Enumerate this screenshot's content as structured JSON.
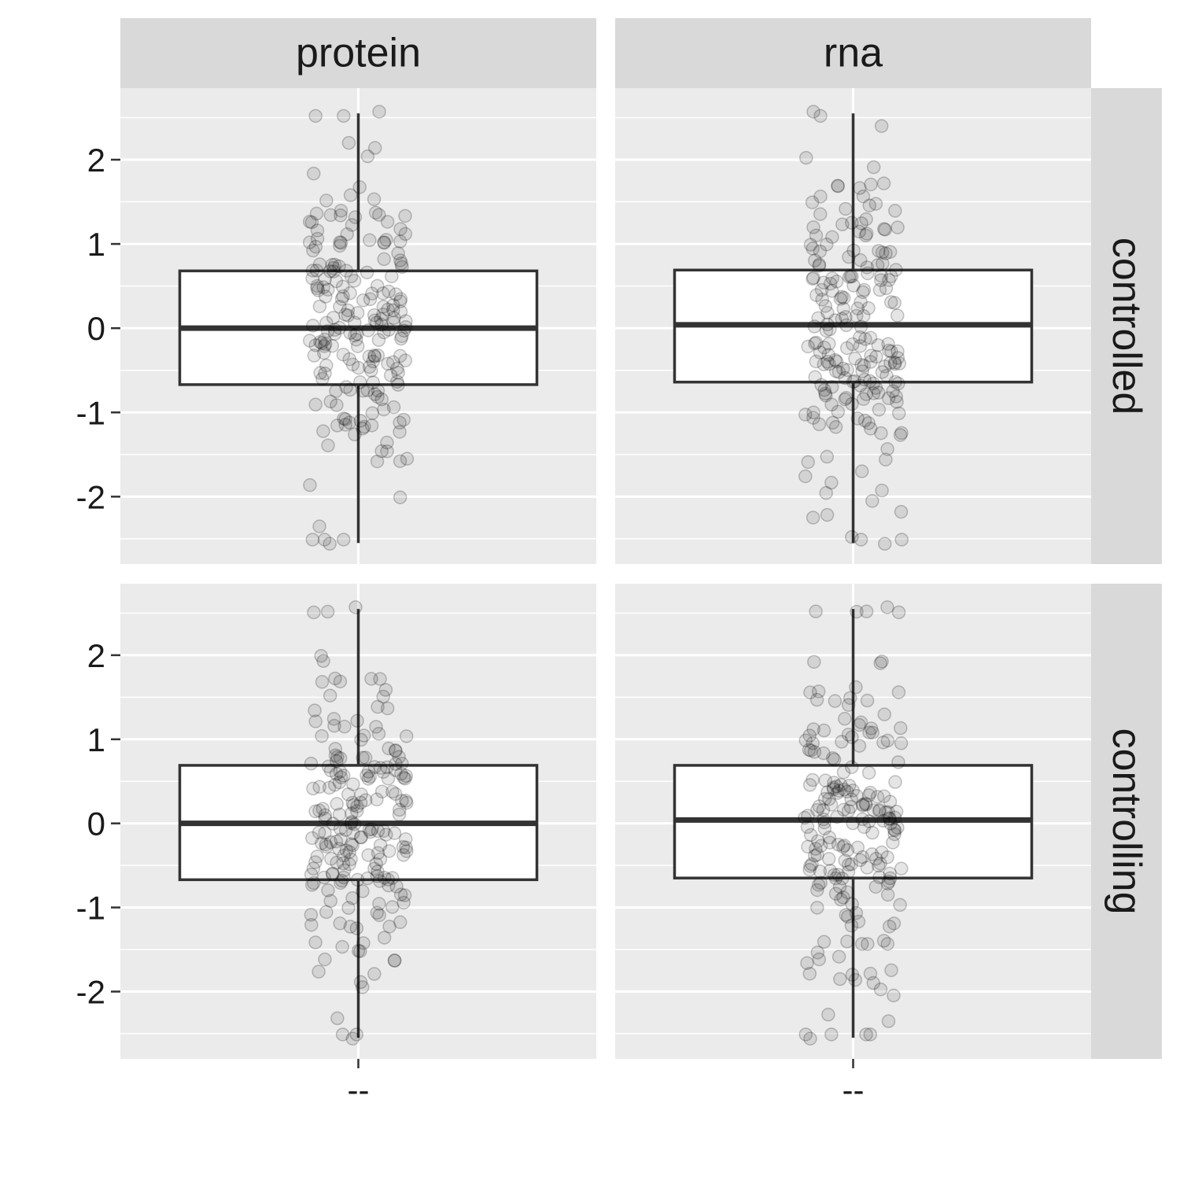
{
  "chart_data": {
    "type": "box",
    "facet_cols": [
      "protein",
      "rna"
    ],
    "facet_rows": [
      "controlled",
      "controlling"
    ],
    "x_tick_label": "--",
    "y_ticks": [
      -2,
      -1,
      0,
      1,
      2
    ],
    "y_tick_labels": [
      "-2",
      "-1",
      "0",
      "1",
      "2"
    ],
    "ylim": [
      -2.8,
      2.85
    ],
    "grid": true,
    "jitter_points": true,
    "point_count_per_panel": 200,
    "panels": [
      {
        "row": "controlled",
        "col": "protein",
        "q1": -0.67,
        "median": 0.0,
        "q3": 0.68,
        "whisker_low": -2.55,
        "whisker_high": 2.55,
        "min": -2.56,
        "max": 2.57
      },
      {
        "row": "controlled",
        "col": "rna",
        "q1": -0.64,
        "median": 0.04,
        "q3": 0.69,
        "whisker_low": -2.55,
        "whisker_high": 2.55,
        "min": -2.56,
        "max": 2.57
      },
      {
        "row": "controlling",
        "col": "protein",
        "q1": -0.67,
        "median": 0.0,
        "q3": 0.69,
        "whisker_low": -2.55,
        "whisker_high": 2.55,
        "min": -2.56,
        "max": 2.57
      },
      {
        "row": "controlling",
        "col": "rna",
        "q1": -0.65,
        "median": 0.04,
        "q3": 0.69,
        "whisker_low": -2.55,
        "whisker_high": 2.55,
        "min": -2.56,
        "max": 2.57
      }
    ]
  }
}
